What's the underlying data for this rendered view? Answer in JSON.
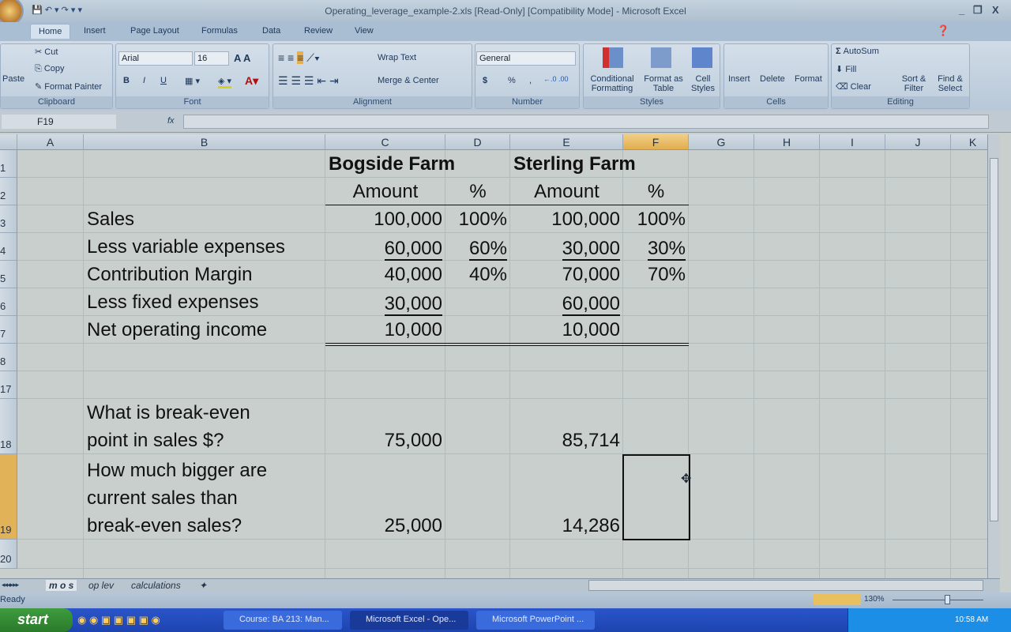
{
  "window": {
    "title": "Operating_leverage_example-2.xls  [Read-Only]  [Compatibility Mode] - Microsoft Excel",
    "min": "_",
    "max": "❐",
    "close": "X"
  },
  "ribbon_tabs": [
    "Home",
    "Insert",
    "Page Layout",
    "Formulas",
    "Data",
    "Review",
    "View"
  ],
  "clipboard": {
    "paste": "Paste",
    "cut": "Cut",
    "copy": "Copy",
    "format_painter": "Format Painter",
    "label": "Clipboard"
  },
  "font": {
    "name": "Arial",
    "size": "16",
    "bold": "B",
    "italic": "I",
    "underline": "U",
    "label": "Font"
  },
  "alignment": {
    "wrap": "Wrap Text",
    "merge": "Merge & Center",
    "label": "Alignment"
  },
  "number": {
    "format": "General",
    "currency": "$",
    "percent": "%",
    "comma": ",",
    "label": "Number"
  },
  "styles": {
    "conditional": "Conditional Formatting",
    "format_table": "Format as Table",
    "cell_styles": "Cell Styles",
    "label": "Styles"
  },
  "cells": {
    "insert": "Insert",
    "delete": "Delete",
    "format": "Format",
    "label": "Cells"
  },
  "editing": {
    "autosum": "AutoSum",
    "fill": "Fill",
    "clear": "Clear",
    "sort": "Sort & Filter",
    "find": "Find & Select",
    "label": "Editing"
  },
  "formula_bar": {
    "name_box": "F19",
    "fx": "fx",
    "value": ""
  },
  "columns": [
    "A",
    "B",
    "C",
    "D",
    "E",
    "F",
    "G",
    "H",
    "I",
    "J",
    "K"
  ],
  "selected_cell": "F19",
  "rows": [
    {
      "num": "1",
      "cells": {
        "C": {
          "v": "Bogside Farm",
          "s": "b l"
        },
        "E": {
          "v": "Sterling Farm",
          "s": "b l"
        }
      }
    },
    {
      "num": "2",
      "cells": {
        "C": {
          "v": "Amount",
          "s": "c"
        },
        "D": {
          "v": "%",
          "s": "c"
        },
        "E": {
          "v": "Amount",
          "s": "c"
        },
        "F": {
          "v": "%",
          "s": "c"
        }
      }
    },
    {
      "num": "3",
      "cells": {
        "B": {
          "v": "Sales",
          "s": "l"
        },
        "C": {
          "v": "100,000",
          "s": "r"
        },
        "D": {
          "v": "100%",
          "s": "r"
        },
        "E": {
          "v": "100,000",
          "s": "r"
        },
        "F": {
          "v": "100%",
          "s": "r"
        }
      }
    },
    {
      "num": "4",
      "cells": {
        "B": {
          "v": "Less variable expenses",
          "s": "l"
        },
        "C": {
          "v": "60,000",
          "s": "r u"
        },
        "D": {
          "v": "60%",
          "s": "r u"
        },
        "E": {
          "v": "30,000",
          "s": "r u"
        },
        "F": {
          "v": "30%",
          "s": "r u"
        }
      }
    },
    {
      "num": "5",
      "cells": {
        "B": {
          "v": "Contribution Margin",
          "s": "l"
        },
        "C": {
          "v": "40,000",
          "s": "r"
        },
        "D": {
          "v": "40%",
          "s": "r"
        },
        "E": {
          "v": "70,000",
          "s": "r"
        },
        "F": {
          "v": "70%",
          "s": "r"
        }
      }
    },
    {
      "num": "6",
      "cells": {
        "B": {
          "v": "Less fixed expenses",
          "s": "l"
        },
        "C": {
          "v": "30,000",
          "s": "r u"
        },
        "E": {
          "v": "60,000",
          "s": "r u"
        }
      }
    },
    {
      "num": "7",
      "cells": {
        "B": {
          "v": "Net operating income",
          "s": "l"
        },
        "C": {
          "v": "10,000",
          "s": "r"
        },
        "E": {
          "v": "10,000",
          "s": "r"
        }
      }
    },
    {
      "num": "8",
      "cells": {}
    },
    {
      "num": "17",
      "cells": {}
    },
    {
      "num": "18",
      "cells": {
        "B": {
          "v": "What is break-even\npoint in sales $?",
          "s": "l"
        },
        "C": {
          "v": "75,000",
          "s": "r"
        },
        "E": {
          "v": "85,714",
          "s": "r"
        }
      }
    },
    {
      "num": "19",
      "cells": {
        "B": {
          "v": "How much bigger are\ncurrent sales than\nbreak-even sales?",
          "s": "l"
        },
        "C": {
          "v": "25,000",
          "s": "r"
        },
        "E": {
          "v": "14,286",
          "s": "r"
        }
      }
    },
    {
      "num": "20",
      "cells": {}
    }
  ],
  "sheet_tabs": [
    "m o s",
    "op lev",
    "calculations"
  ],
  "status": {
    "text": "Ready",
    "zoom": "130%"
  },
  "taskbar": {
    "start": "start",
    "buttons": [
      "Course: BA 213: Man...",
      "Microsoft Excel - Ope...",
      "Microsoft PowerPoint ..."
    ],
    "clock": "10:58 AM"
  }
}
